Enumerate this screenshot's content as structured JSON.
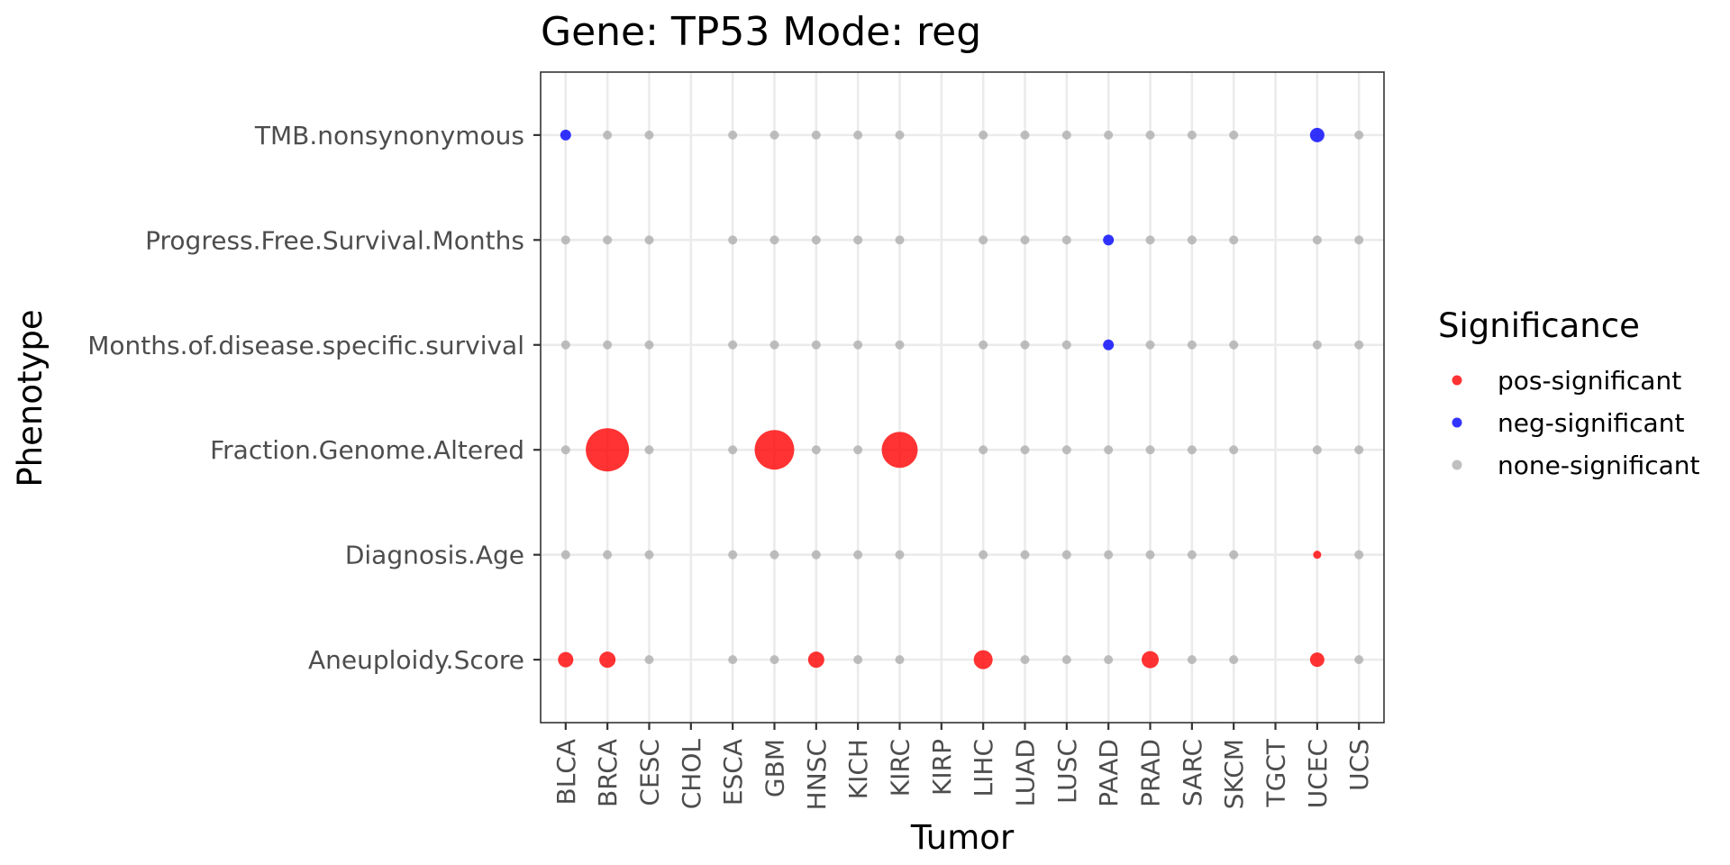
{
  "chart_data": {
    "type": "scatter",
    "title": "Gene: TP53 Mode: reg",
    "xlabel": "Tumor",
    "ylabel": "Phenotype",
    "grid": true,
    "legend_placement": "right",
    "legend_title": "Significance",
    "categories_x": [
      "BLCA",
      "BRCA",
      "CESC",
      "CHOL",
      "ESCA",
      "GBM",
      "HNSC",
      "KICH",
      "KIRC",
      "KIRP",
      "LIHC",
      "LUAD",
      "LUSC",
      "PAAD",
      "PRAD",
      "SARC",
      "SKCM",
      "TGCT",
      "UCEC",
      "UCS"
    ],
    "categories_y": [
      "Aneuploidy.Score",
      "Diagnosis.Age",
      "Fraction.Genome.Altered",
      "Months.of.disease.specific.survival",
      "Progress.Free.Survival.Months",
      "TMB.nonsynonymous"
    ],
    "legend": [
      {
        "key": "pos",
        "label": "pos-significant",
        "color": "#ff0000"
      },
      {
        "key": "neg",
        "label": "neg-significant",
        "color": "#0000ff"
      },
      {
        "key": "none",
        "label": "none-significant",
        "color": "#a9a9a9"
      }
    ],
    "colors": {
      "pos": "#ff0000",
      "neg": "#0000ff",
      "none": "#a9a9a9"
    },
    "points": [
      {
        "x": "BLCA",
        "y": "TMB.nonsynonymous",
        "sig": "neg",
        "size": 1.2
      },
      {
        "x": "BRCA",
        "y": "TMB.nonsynonymous",
        "sig": "none",
        "size": 1
      },
      {
        "x": "CESC",
        "y": "TMB.nonsynonymous",
        "sig": "none",
        "size": 1
      },
      {
        "x": "ESCA",
        "y": "TMB.nonsynonymous",
        "sig": "none",
        "size": 1
      },
      {
        "x": "GBM",
        "y": "TMB.nonsynonymous",
        "sig": "none",
        "size": 1
      },
      {
        "x": "HNSC",
        "y": "TMB.nonsynonymous",
        "sig": "none",
        "size": 1
      },
      {
        "x": "KICH",
        "y": "TMB.nonsynonymous",
        "sig": "none",
        "size": 1
      },
      {
        "x": "KIRC",
        "y": "TMB.nonsynonymous",
        "sig": "none",
        "size": 1
      },
      {
        "x": "LIHC",
        "y": "TMB.nonsynonymous",
        "sig": "none",
        "size": 1
      },
      {
        "x": "LUAD",
        "y": "TMB.nonsynonymous",
        "sig": "none",
        "size": 1
      },
      {
        "x": "LUSC",
        "y": "TMB.nonsynonymous",
        "sig": "none",
        "size": 1
      },
      {
        "x": "PAAD",
        "y": "TMB.nonsynonymous",
        "sig": "none",
        "size": 1
      },
      {
        "x": "PRAD",
        "y": "TMB.nonsynonymous",
        "sig": "none",
        "size": 1
      },
      {
        "x": "SARC",
        "y": "TMB.nonsynonymous",
        "sig": "none",
        "size": 1
      },
      {
        "x": "SKCM",
        "y": "TMB.nonsynonymous",
        "sig": "none",
        "size": 1
      },
      {
        "x": "UCEC",
        "y": "TMB.nonsynonymous",
        "sig": "neg",
        "size": 1.6
      },
      {
        "x": "UCS",
        "y": "TMB.nonsynonymous",
        "sig": "none",
        "size": 1
      },
      {
        "x": "BLCA",
        "y": "Progress.Free.Survival.Months",
        "sig": "none",
        "size": 1
      },
      {
        "x": "BRCA",
        "y": "Progress.Free.Survival.Months",
        "sig": "none",
        "size": 1
      },
      {
        "x": "CESC",
        "y": "Progress.Free.Survival.Months",
        "sig": "none",
        "size": 1
      },
      {
        "x": "ESCA",
        "y": "Progress.Free.Survival.Months",
        "sig": "none",
        "size": 1
      },
      {
        "x": "GBM",
        "y": "Progress.Free.Survival.Months",
        "sig": "none",
        "size": 1
      },
      {
        "x": "HNSC",
        "y": "Progress.Free.Survival.Months",
        "sig": "none",
        "size": 1
      },
      {
        "x": "KICH",
        "y": "Progress.Free.Survival.Months",
        "sig": "none",
        "size": 1
      },
      {
        "x": "KIRC",
        "y": "Progress.Free.Survival.Months",
        "sig": "none",
        "size": 1
      },
      {
        "x": "LIHC",
        "y": "Progress.Free.Survival.Months",
        "sig": "none",
        "size": 1
      },
      {
        "x": "LUAD",
        "y": "Progress.Free.Survival.Months",
        "sig": "none",
        "size": 1
      },
      {
        "x": "LUSC",
        "y": "Progress.Free.Survival.Months",
        "sig": "none",
        "size": 1
      },
      {
        "x": "PAAD",
        "y": "Progress.Free.Survival.Months",
        "sig": "neg",
        "size": 1.2
      },
      {
        "x": "PRAD",
        "y": "Progress.Free.Survival.Months",
        "sig": "none",
        "size": 1
      },
      {
        "x": "SARC",
        "y": "Progress.Free.Survival.Months",
        "sig": "none",
        "size": 1
      },
      {
        "x": "SKCM",
        "y": "Progress.Free.Survival.Months",
        "sig": "none",
        "size": 1
      },
      {
        "x": "UCEC",
        "y": "Progress.Free.Survival.Months",
        "sig": "none",
        "size": 1
      },
      {
        "x": "UCS",
        "y": "Progress.Free.Survival.Months",
        "sig": "none",
        "size": 1
      },
      {
        "x": "BLCA",
        "y": "Months.of.disease.specific.survival",
        "sig": "none",
        "size": 1
      },
      {
        "x": "BRCA",
        "y": "Months.of.disease.specific.survival",
        "sig": "none",
        "size": 1
      },
      {
        "x": "CESC",
        "y": "Months.of.disease.specific.survival",
        "sig": "none",
        "size": 1
      },
      {
        "x": "ESCA",
        "y": "Months.of.disease.specific.survival",
        "sig": "none",
        "size": 1
      },
      {
        "x": "GBM",
        "y": "Months.of.disease.specific.survival",
        "sig": "none",
        "size": 1
      },
      {
        "x": "HNSC",
        "y": "Months.of.disease.specific.survival",
        "sig": "none",
        "size": 1
      },
      {
        "x": "KICH",
        "y": "Months.of.disease.specific.survival",
        "sig": "none",
        "size": 1
      },
      {
        "x": "KIRC",
        "y": "Months.of.disease.specific.survival",
        "sig": "none",
        "size": 1
      },
      {
        "x": "LIHC",
        "y": "Months.of.disease.specific.survival",
        "sig": "none",
        "size": 1
      },
      {
        "x": "LUAD",
        "y": "Months.of.disease.specific.survival",
        "sig": "none",
        "size": 1
      },
      {
        "x": "LUSC",
        "y": "Months.of.disease.specific.survival",
        "sig": "none",
        "size": 1
      },
      {
        "x": "PAAD",
        "y": "Months.of.disease.specific.survival",
        "sig": "neg",
        "size": 1.2
      },
      {
        "x": "PRAD",
        "y": "Months.of.disease.specific.survival",
        "sig": "none",
        "size": 1
      },
      {
        "x": "SARC",
        "y": "Months.of.disease.specific.survival",
        "sig": "none",
        "size": 1
      },
      {
        "x": "SKCM",
        "y": "Months.of.disease.specific.survival",
        "sig": "none",
        "size": 1
      },
      {
        "x": "UCEC",
        "y": "Months.of.disease.specific.survival",
        "sig": "none",
        "size": 1
      },
      {
        "x": "UCS",
        "y": "Months.of.disease.specific.survival",
        "sig": "none",
        "size": 1
      },
      {
        "x": "BLCA",
        "y": "Fraction.Genome.Altered",
        "sig": "none",
        "size": 1
      },
      {
        "x": "BRCA",
        "y": "Fraction.Genome.Altered",
        "sig": "pos",
        "size": 4.8
      },
      {
        "x": "CESC",
        "y": "Fraction.Genome.Altered",
        "sig": "none",
        "size": 1
      },
      {
        "x": "ESCA",
        "y": "Fraction.Genome.Altered",
        "sig": "none",
        "size": 1
      },
      {
        "x": "GBM",
        "y": "Fraction.Genome.Altered",
        "sig": "pos",
        "size": 4.4
      },
      {
        "x": "HNSC",
        "y": "Fraction.Genome.Altered",
        "sig": "none",
        "size": 1
      },
      {
        "x": "KICH",
        "y": "Fraction.Genome.Altered",
        "sig": "none",
        "size": 1
      },
      {
        "x": "KIRC",
        "y": "Fraction.Genome.Altered",
        "sig": "pos",
        "size": 4.0
      },
      {
        "x": "LIHC",
        "y": "Fraction.Genome.Altered",
        "sig": "none",
        "size": 1
      },
      {
        "x": "LUAD",
        "y": "Fraction.Genome.Altered",
        "sig": "none",
        "size": 1
      },
      {
        "x": "LUSC",
        "y": "Fraction.Genome.Altered",
        "sig": "none",
        "size": 1
      },
      {
        "x": "PAAD",
        "y": "Fraction.Genome.Altered",
        "sig": "none",
        "size": 1
      },
      {
        "x": "PRAD",
        "y": "Fraction.Genome.Altered",
        "sig": "none",
        "size": 1
      },
      {
        "x": "SARC",
        "y": "Fraction.Genome.Altered",
        "sig": "none",
        "size": 1
      },
      {
        "x": "SKCM",
        "y": "Fraction.Genome.Altered",
        "sig": "none",
        "size": 1
      },
      {
        "x": "UCEC",
        "y": "Fraction.Genome.Altered",
        "sig": "none",
        "size": 1
      },
      {
        "x": "UCS",
        "y": "Fraction.Genome.Altered",
        "sig": "none",
        "size": 1
      },
      {
        "x": "BLCA",
        "y": "Diagnosis.Age",
        "sig": "none",
        "size": 1
      },
      {
        "x": "BRCA",
        "y": "Diagnosis.Age",
        "sig": "none",
        "size": 1
      },
      {
        "x": "CESC",
        "y": "Diagnosis.Age",
        "sig": "none",
        "size": 1
      },
      {
        "x": "ESCA",
        "y": "Diagnosis.Age",
        "sig": "none",
        "size": 1
      },
      {
        "x": "GBM",
        "y": "Diagnosis.Age",
        "sig": "none",
        "size": 1
      },
      {
        "x": "HNSC",
        "y": "Diagnosis.Age",
        "sig": "none",
        "size": 1
      },
      {
        "x": "KICH",
        "y": "Diagnosis.Age",
        "sig": "none",
        "size": 1
      },
      {
        "x": "KIRC",
        "y": "Diagnosis.Age",
        "sig": "none",
        "size": 1
      },
      {
        "x": "LIHC",
        "y": "Diagnosis.Age",
        "sig": "none",
        "size": 1
      },
      {
        "x": "LUAD",
        "y": "Diagnosis.Age",
        "sig": "none",
        "size": 1
      },
      {
        "x": "LUSC",
        "y": "Diagnosis.Age",
        "sig": "none",
        "size": 1
      },
      {
        "x": "PAAD",
        "y": "Diagnosis.Age",
        "sig": "none",
        "size": 1
      },
      {
        "x": "PRAD",
        "y": "Diagnosis.Age",
        "sig": "none",
        "size": 1
      },
      {
        "x": "SARC",
        "y": "Diagnosis.Age",
        "sig": "none",
        "size": 1
      },
      {
        "x": "SKCM",
        "y": "Diagnosis.Age",
        "sig": "none",
        "size": 1
      },
      {
        "x": "UCEC",
        "y": "Diagnosis.Age",
        "sig": "pos",
        "size": 0.9
      },
      {
        "x": "UCS",
        "y": "Diagnosis.Age",
        "sig": "none",
        "size": 1
      },
      {
        "x": "BLCA",
        "y": "Aneuploidy.Score",
        "sig": "pos",
        "size": 1.7
      },
      {
        "x": "BRCA",
        "y": "Aneuploidy.Score",
        "sig": "pos",
        "size": 1.8
      },
      {
        "x": "CESC",
        "y": "Aneuploidy.Score",
        "sig": "none",
        "size": 1
      },
      {
        "x": "ESCA",
        "y": "Aneuploidy.Score",
        "sig": "none",
        "size": 1
      },
      {
        "x": "GBM",
        "y": "Aneuploidy.Score",
        "sig": "none",
        "size": 1
      },
      {
        "x": "HNSC",
        "y": "Aneuploidy.Score",
        "sig": "pos",
        "size": 1.8
      },
      {
        "x": "KICH",
        "y": "Aneuploidy.Score",
        "sig": "none",
        "size": 1
      },
      {
        "x": "KIRC",
        "y": "Aneuploidy.Score",
        "sig": "none",
        "size": 1
      },
      {
        "x": "LIHC",
        "y": "Aneuploidy.Score",
        "sig": "pos",
        "size": 2.1
      },
      {
        "x": "LUAD",
        "y": "Aneuploidy.Score",
        "sig": "none",
        "size": 1
      },
      {
        "x": "LUSC",
        "y": "Aneuploidy.Score",
        "sig": "none",
        "size": 1
      },
      {
        "x": "PAAD",
        "y": "Aneuploidy.Score",
        "sig": "none",
        "size": 1
      },
      {
        "x": "PRAD",
        "y": "Aneuploidy.Score",
        "sig": "pos",
        "size": 1.9
      },
      {
        "x": "SARC",
        "y": "Aneuploidy.Score",
        "sig": "none",
        "size": 1
      },
      {
        "x": "SKCM",
        "y": "Aneuploidy.Score",
        "sig": "none",
        "size": 1
      },
      {
        "x": "UCEC",
        "y": "Aneuploidy.Score",
        "sig": "pos",
        "size": 1.6
      },
      {
        "x": "UCS",
        "y": "Aneuploidy.Score",
        "sig": "none",
        "size": 1
      }
    ]
  }
}
